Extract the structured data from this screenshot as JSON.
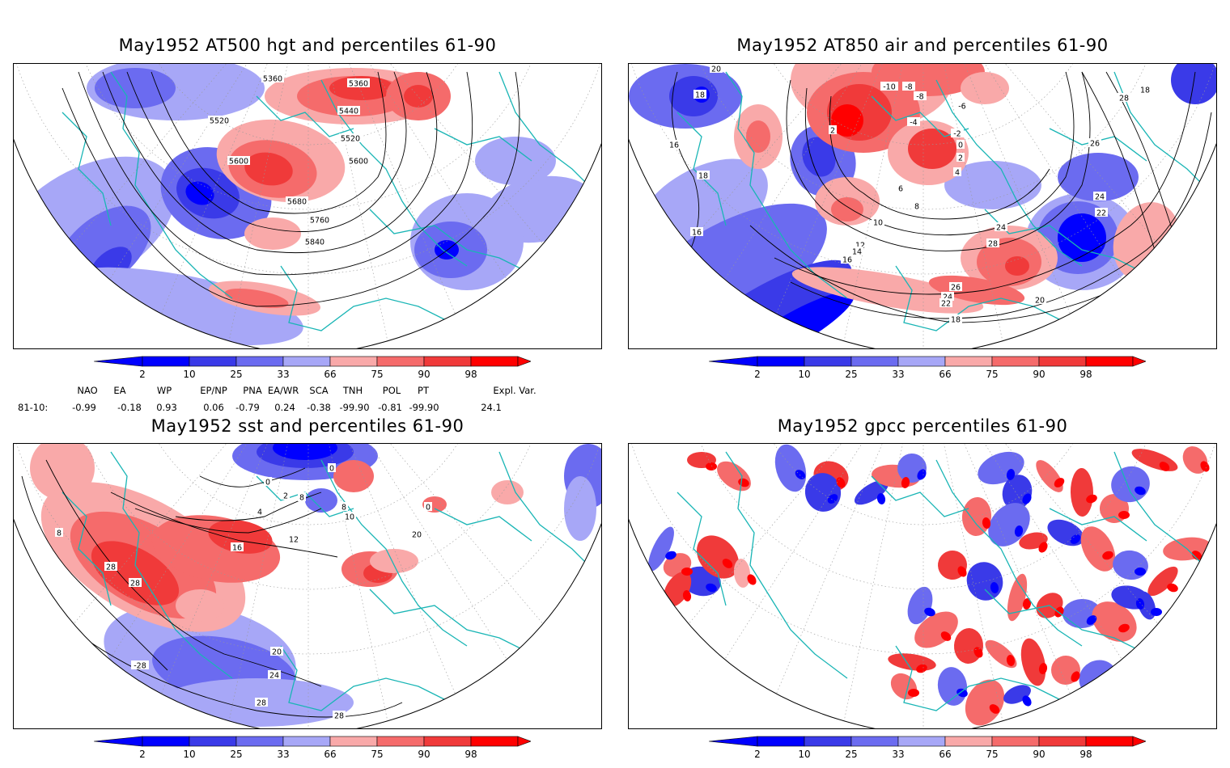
{
  "panels": [
    {
      "id": "hgt",
      "title": "May1952 AT500 hgt and percentiles 61-90",
      "contour_labels": [
        "5360",
        "5360",
        "5440",
        "5520",
        "5520",
        "5600",
        "5600",
        "5680",
        "5760",
        "5840"
      ]
    },
    {
      "id": "air",
      "title": "May1952 AT850 air and percentiles 61-90",
      "contour_labels": [
        "20",
        "18",
        "16",
        "18",
        "16",
        "2",
        "-10",
        "-8",
        "-8",
        "-6",
        "-4",
        "-2",
        "0",
        "2",
        "4",
        "6",
        "8",
        "10",
        "12",
        "14",
        "16",
        "24",
        "28",
        "26",
        "24",
        "22",
        "20",
        "18",
        "26",
        "24",
        "22",
        "28",
        "18"
      ]
    },
    {
      "id": "sst",
      "title": "May1952 sst and percentiles 61-90",
      "contour_labels": [
        "0",
        "0",
        "4",
        "8",
        "12",
        "16",
        "20",
        "24",
        "28",
        "28",
        "28",
        "28",
        "-28",
        "8",
        "10",
        "20",
        "0",
        "2",
        "8"
      ]
    },
    {
      "id": "gpcc",
      "title": "May1952 gpcc percentiles 61-90",
      "contour_labels": []
    }
  ],
  "colorbar": {
    "labels": [
      "2",
      "10",
      "25",
      "33",
      "66",
      "75",
      "90",
      "98"
    ],
    "colors": {
      "blue_dark": "#0000ff",
      "blue_mid": "#3a3ae8",
      "blue_light": "#6b6bf0",
      "blue_pale": "#a7a7f7",
      "red_pale": "#f9a9a9",
      "red_light": "#f56b6b",
      "red_mid": "#f03a3a",
      "red_dark": "#ff0000"
    }
  },
  "indices": {
    "header": [
      "NAO",
      "EA",
      "WP",
      "EP/NP",
      "PNA",
      "EA/WR",
      "SCA",
      "TNH",
      "POL",
      "PT",
      "Expl. Var."
    ],
    "row_label": "81-10:",
    "values": [
      "-0.99",
      "-0.18",
      "0.93",
      "0.06",
      "-0.79",
      "0.24",
      "-0.38",
      "-99.90",
      "-0.81",
      "-99.90",
      "24.1"
    ]
  }
}
